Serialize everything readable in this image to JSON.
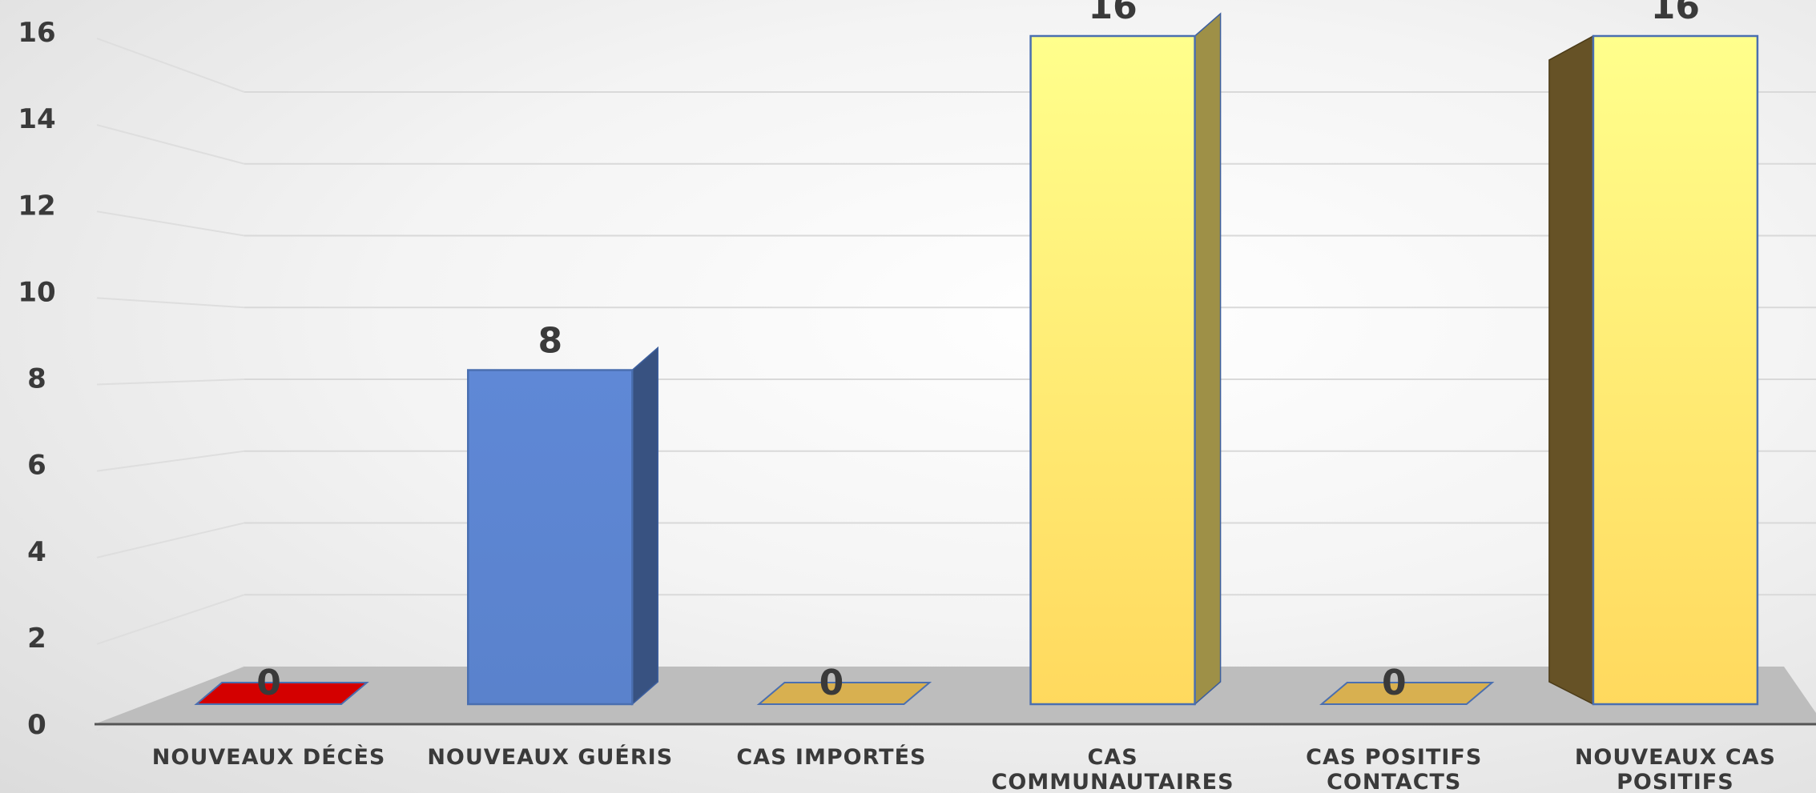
{
  "chart_data": {
    "type": "bar",
    "categories": [
      [
        "NOUVEAUX DÉCÈS"
      ],
      [
        "NOUVEAUX  GUÉRIS"
      ],
      [
        "CAS IMPORTÉS"
      ],
      [
        "CAS",
        "COMMUNAUTAIRES"
      ],
      [
        "CAS POSITIFS",
        "CONTACTS"
      ],
      [
        "NOUVEAUX CAS",
        "POSITIFS"
      ]
    ],
    "values": [
      0,
      8,
      0,
      16,
      0,
      16
    ],
    "data_labels": [
      "0",
      "8",
      "0",
      "16",
      "0",
      "16"
    ],
    "bar_colors": [
      "#d40000",
      "#5a84d0",
      "#d8b050",
      "#ffe873",
      "#d8b050",
      "#ffe873"
    ],
    "ylim": [
      0,
      16
    ],
    "yticks": [
      "0",
      "2",
      "4",
      "6",
      "8",
      "10",
      "12",
      "14",
      "16"
    ],
    "grid": true,
    "style": "3d-column",
    "title": "",
    "xlabel": "",
    "ylabel": ""
  }
}
